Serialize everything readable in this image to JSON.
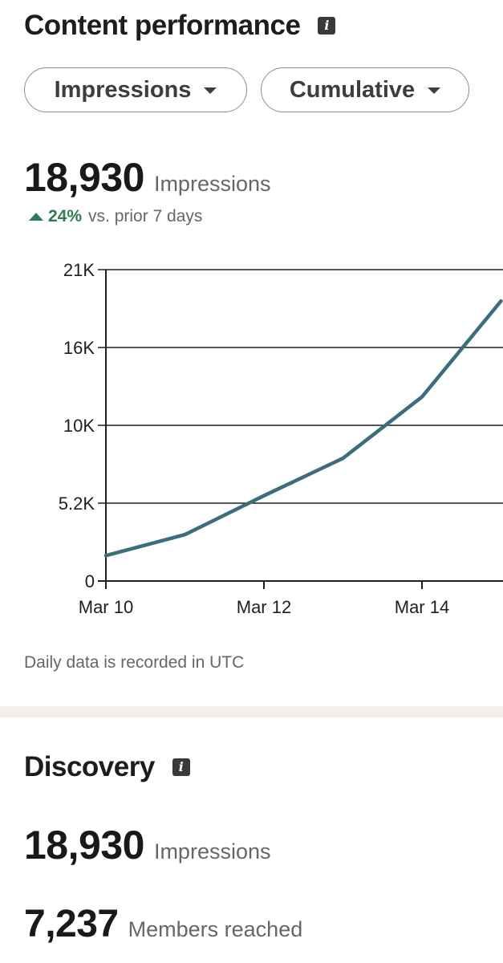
{
  "content_performance": {
    "title": "Content performance",
    "info_icon": "info-icon",
    "metric_dropdown": "Impressions",
    "mode_dropdown": "Cumulative",
    "total_value": "18,930",
    "total_label": "Impressions",
    "change_percent": "24%",
    "change_text": "vs. prior 7 days",
    "footnote": "Daily data is recorded in UTC"
  },
  "chart_data": {
    "type": "line",
    "title": "",
    "xlabel": "",
    "ylabel": "",
    "x": [
      "Mar 10",
      "Mar 11",
      "Mar 12",
      "Mar 13",
      "Mar 14",
      "Mar 15"
    ],
    "series": [
      {
        "name": "Impressions",
        "values": [
          1700,
          3100,
          5700,
          8200,
          12300,
          18700
        ]
      }
    ],
    "x_tick_labels": [
      "Mar 10",
      "Mar 12",
      "Mar 14"
    ],
    "y_tick_values": [
      0,
      5200,
      10400,
      15600,
      20800
    ],
    "y_tick_labels": [
      "0",
      "5.2K",
      "10K",
      "16K",
      "21K"
    ],
    "ylim": [
      0,
      20800
    ],
    "grid": true,
    "line_color": "#3a6e7c"
  },
  "discovery": {
    "title": "Discovery",
    "info_icon": "info-icon",
    "impressions_value": "18,930",
    "impressions_label": "Impressions",
    "members_value": "7,237",
    "members_label": "Members reached"
  },
  "colors": {
    "positive": "#2e7d52",
    "divider": "#f3efeb"
  }
}
